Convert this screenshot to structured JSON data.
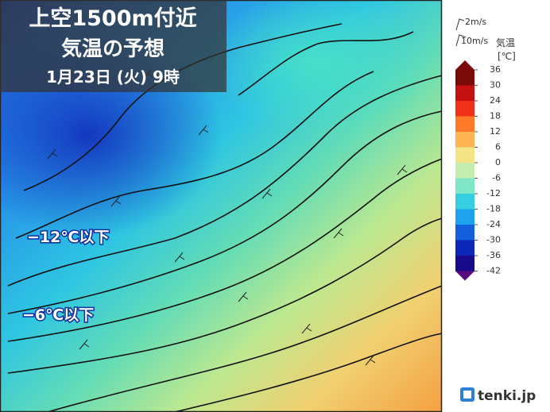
{
  "title": {
    "line1": "上空1500m付近",
    "line2": "気温の予想",
    "line3": "1月23日 (火) 9時"
  },
  "map_labels": [
    "−12℃以下",
    "−6℃以下"
  ],
  "legend": {
    "wind_small": "2m/s",
    "wind_large": "10m/s",
    "variable": "気温",
    "unit": "[℃]",
    "ticks": [
      36,
      30,
      24,
      18,
      12,
      6,
      0,
      -6,
      -12,
      -18,
      -24,
      -30,
      -36,
      -42
    ],
    "colors": [
      "#7a0a0a",
      "#c41010",
      "#f03018",
      "#ff7a28",
      "#ffb454",
      "#f3e486",
      "#c4eeb0",
      "#7fe6c8",
      "#36cfe2",
      "#1ea2ee",
      "#1460dc",
      "#0c28b8",
      "#180a88"
    ]
  },
  "logo": "tenki.jp"
}
